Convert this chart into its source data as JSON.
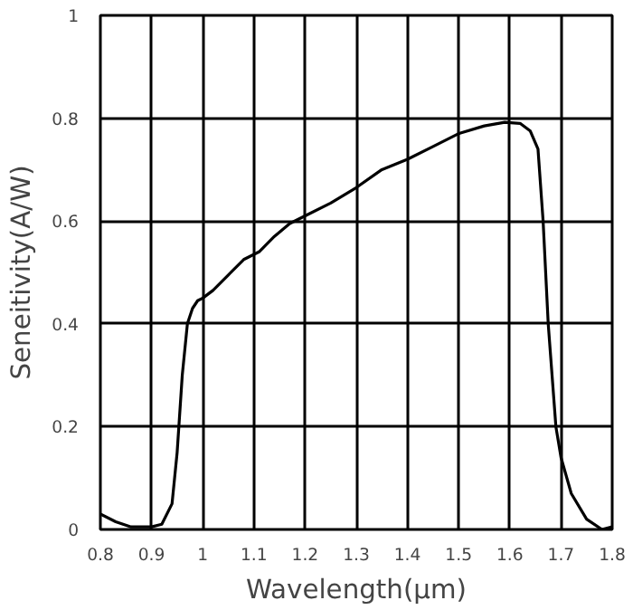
{
  "chart_data": {
    "type": "line",
    "xlabel": "Wavelength(μm)",
    "ylabel": "Seneitivity(A/W)",
    "xlim": [
      0.8,
      1.8
    ],
    "ylim": [
      0,
      1
    ],
    "xticks": [
      0.8,
      0.9,
      1,
      1.1,
      1.2,
      1.3,
      1.4,
      1.5,
      1.6,
      1.7,
      1.8
    ],
    "yticks": [
      0,
      0.2,
      0.4,
      0.6,
      0.8,
      1
    ],
    "grid": true,
    "series": [
      {
        "color": "#000000",
        "x": [
          0.8,
          0.83,
          0.86,
          0.9,
          0.92,
          0.94,
          0.95,
          0.96,
          0.97,
          0.98,
          0.99,
          1.0,
          1.02,
          1.05,
          1.08,
          1.11,
          1.14,
          1.17,
          1.2,
          1.25,
          1.3,
          1.35,
          1.4,
          1.45,
          1.5,
          1.55,
          1.59,
          1.62,
          1.64,
          1.655,
          1.665,
          1.675,
          1.69,
          1.7,
          1.72,
          1.75,
          1.78,
          1.8
        ],
        "values": [
          0.03,
          0.015,
          0.005,
          0.005,
          0.01,
          0.05,
          0.15,
          0.3,
          0.4,
          0.43,
          0.445,
          0.45,
          0.465,
          0.495,
          0.525,
          0.54,
          0.57,
          0.595,
          0.61,
          0.635,
          0.665,
          0.7,
          0.72,
          0.745,
          0.77,
          0.785,
          0.792,
          0.79,
          0.775,
          0.74,
          0.6,
          0.4,
          0.2,
          0.14,
          0.07,
          0.02,
          0.0,
          0.005
        ]
      }
    ]
  }
}
